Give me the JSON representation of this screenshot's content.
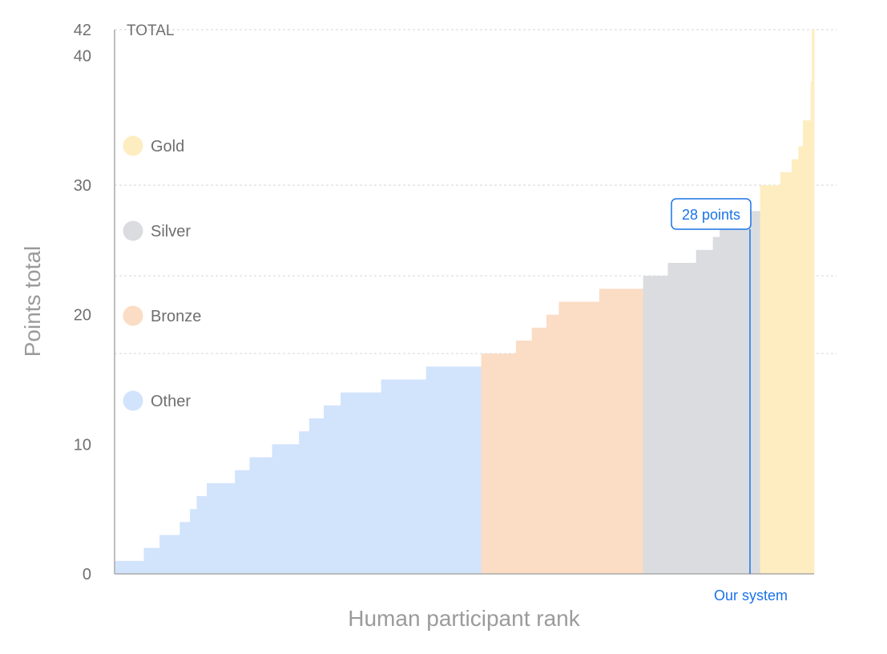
{
  "chart_data": {
    "type": "area",
    "xlabel": "Human participant rank",
    "ylabel": "Points total",
    "ylim": [
      0,
      42
    ],
    "y_ticks": [
      0,
      10,
      20,
      30,
      40,
      42
    ],
    "grid": "dashed horizontal lines at medal thresholds and maximum",
    "reference_lines": [
      {
        "value": 42,
        "label": "TOTAL"
      },
      {
        "value": 30,
        "label": ""
      },
      {
        "value": 23,
        "label": ""
      },
      {
        "value": 17,
        "label": ""
      }
    ],
    "legend_position": "left",
    "legend": [
      {
        "name": "Gold",
        "color": "#fdedc0"
      },
      {
        "name": "Silver",
        "color": "#dadce0"
      },
      {
        "name": "Bronze",
        "color": "#fbdcc4"
      },
      {
        "name": "Other",
        "color": "#d2e3fc"
      }
    ],
    "rank_range": [
      0,
      622
    ],
    "steps": [
      {
        "from": 0,
        "to": 26,
        "value": 1,
        "category": "Other"
      },
      {
        "from": 26,
        "to": 40,
        "value": 2,
        "category": "Other"
      },
      {
        "from": 40,
        "to": 58,
        "value": 3,
        "category": "Other"
      },
      {
        "from": 58,
        "to": 67,
        "value": 4,
        "category": "Other"
      },
      {
        "from": 67,
        "to": 73,
        "value": 5,
        "category": "Other"
      },
      {
        "from": 73,
        "to": 82,
        "value": 6,
        "category": "Other"
      },
      {
        "from": 82,
        "to": 107,
        "value": 7,
        "category": "Other"
      },
      {
        "from": 107,
        "to": 120,
        "value": 8,
        "category": "Other"
      },
      {
        "from": 120,
        "to": 140,
        "value": 9,
        "category": "Other"
      },
      {
        "from": 140,
        "to": 164,
        "value": 10,
        "category": "Other"
      },
      {
        "from": 164,
        "to": 173,
        "value": 11,
        "category": "Other"
      },
      {
        "from": 173,
        "to": 186,
        "value": 12,
        "category": "Other"
      },
      {
        "from": 186,
        "to": 201,
        "value": 13,
        "category": "Other"
      },
      {
        "from": 201,
        "to": 237,
        "value": 14,
        "category": "Other"
      },
      {
        "from": 237,
        "to": 277,
        "value": 15,
        "category": "Other"
      },
      {
        "from": 277,
        "to": 326,
        "value": 16,
        "category": "Other"
      },
      {
        "from": 326,
        "to": 357,
        "value": 17,
        "category": "Bronze"
      },
      {
        "from": 357,
        "to": 371,
        "value": 18,
        "category": "Bronze"
      },
      {
        "from": 371,
        "to": 384,
        "value": 19,
        "category": "Bronze"
      },
      {
        "from": 384,
        "to": 395,
        "value": 20,
        "category": "Bronze"
      },
      {
        "from": 395,
        "to": 431,
        "value": 21,
        "category": "Bronze"
      },
      {
        "from": 431,
        "to": 470,
        "value": 22,
        "category": "Bronze"
      },
      {
        "from": 470,
        "to": 492,
        "value": 23,
        "category": "Silver"
      },
      {
        "from": 492,
        "to": 517,
        "value": 24,
        "category": "Silver"
      },
      {
        "from": 517,
        "to": 532,
        "value": 25,
        "category": "Silver"
      },
      {
        "from": 532,
        "to": 538,
        "value": 26,
        "category": "Silver"
      },
      {
        "from": 538,
        "to": 553,
        "value": 27,
        "category": "Silver"
      },
      {
        "from": 553,
        "to": 574,
        "value": 28,
        "category": "Silver"
      },
      {
        "from": 574,
        "to": 592,
        "value": 30,
        "category": "Gold"
      },
      {
        "from": 592,
        "to": 602,
        "value": 31,
        "category": "Gold"
      },
      {
        "from": 602,
        "to": 608,
        "value": 32,
        "category": "Gold"
      },
      {
        "from": 608,
        "to": 612,
        "value": 33,
        "category": "Gold"
      },
      {
        "from": 612,
        "to": 619,
        "value": 35,
        "category": "Gold"
      },
      {
        "from": 619,
        "to": 620,
        "value": 38,
        "category": "Gold"
      },
      {
        "from": 620,
        "to": 622,
        "value": 42,
        "category": "Gold"
      }
    ],
    "marker": {
      "rank": 565,
      "value": 28,
      "callout": "28 points",
      "label": "Our system"
    }
  }
}
